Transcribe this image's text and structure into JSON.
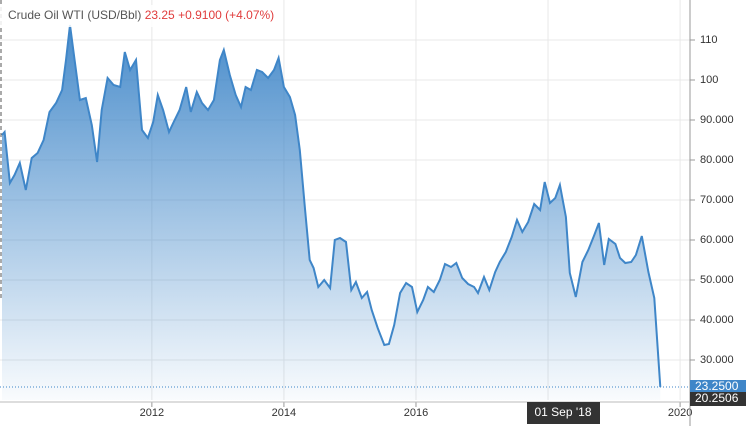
{
  "chart_data": {
    "type": "area",
    "title": "Crude Oil WTI (USD/Bbl)",
    "quote": {
      "price": "23.25",
      "change": "+0.9100",
      "change_percent": "(+4.07%)"
    },
    "color": "#3f86c8",
    "x": [
      2009.73,
      2009.77,
      2009.85,
      2009.92,
      2010.0,
      2010.09,
      2010.18,
      2010.27,
      2010.36,
      2010.45,
      2010.55,
      2010.64,
      2010.7,
      2010.76,
      2010.83,
      2010.91,
      2011.0,
      2011.09,
      2011.17,
      2011.24,
      2011.33,
      2011.42,
      2011.52,
      2011.59,
      2011.67,
      2011.76,
      2011.85,
      2011.94,
      2012.02,
      2012.09,
      2012.17,
      2012.26,
      2012.33,
      2012.42,
      2012.52,
      2012.59,
      2012.68,
      2012.76,
      2012.85,
      2012.94,
      2013.03,
      2013.09,
      2013.18,
      2013.27,
      2013.35,
      2013.42,
      2013.5,
      2013.59,
      2013.67,
      2013.76,
      2013.85,
      2013.92,
      2014.0,
      2014.09,
      2014.17,
      2014.24,
      2014.32,
      2014.39,
      2014.45,
      2014.52,
      2014.61,
      2014.7,
      2014.77,
      2014.85,
      2014.94,
      2015.02,
      2015.09,
      2015.18,
      2015.26,
      2015.33,
      2015.42,
      2015.52,
      2015.59,
      2015.67,
      2015.76,
      2015.85,
      2015.94,
      2016.02,
      2016.11,
      2016.18,
      2016.27,
      2016.36,
      2016.44,
      2016.53,
      2016.61,
      2016.7,
      2016.79,
      2016.88,
      2016.94,
      2017.03,
      2017.11,
      2017.2,
      2017.27,
      2017.36,
      2017.45,
      2017.53,
      2017.61,
      2017.7,
      2017.79,
      2017.88,
      2017.95,
      2018.03,
      2018.11,
      2018.18,
      2018.27,
      2018.33,
      2018.42,
      2018.52,
      2018.61,
      2018.7,
      2018.77,
      2018.85,
      2018.92,
      2019.02,
      2019.09,
      2019.17,
      2019.26,
      2019.33,
      2019.42,
      2019.52,
      2019.61,
      2019.7
    ],
    "values": [
      86.25,
      87,
      74.25,
      76.25,
      79.25,
      72.5,
      80.5,
      81.75,
      85,
      92,
      94.25,
      97.5,
      105,
      113.75,
      105,
      95,
      95.5,
      88.75,
      79.5,
      92.5,
      100.5,
      98.75,
      98.25,
      107,
      102.5,
      105,
      87.5,
      85.5,
      89.5,
      96.25,
      92.5,
      87,
      89.5,
      92.5,
      98.25,
      92,
      97,
      94.25,
      92.5,
      95,
      105,
      107.5,
      101.25,
      96.25,
      93.25,
      98.25,
      97.5,
      102.5,
      102,
      100.5,
      102.5,
      105.5,
      98.25,
      95.75,
      91.25,
      82.5,
      67.5,
      55,
      53,
      48.25,
      50,
      48,
      60,
      60.5,
      59.5,
      47.5,
      49.5,
      45.5,
      47,
      42.5,
      38,
      33.75,
      34,
      38.75,
      46.75,
      49.25,
      48.25,
      42,
      45,
      48.25,
      47,
      50,
      54,
      53.25,
      54.25,
      50.5,
      49,
      48.25,
      46.75,
      50.75,
      47.5,
      52,
      54.5,
      57,
      60.75,
      65,
      62,
      64.5,
      69,
      67.5,
      74.5,
      69.25,
      70.5,
      73.75,
      65.75,
      51.75,
      45.75,
      54.5,
      57.5,
      61.25,
      64.25,
      53.75,
      60.25,
      59,
      55.5,
      54.25,
      54.5,
      56.25,
      61,
      52,
      45.5,
      23.25
    ],
    "xlim": [
      2009.7,
      2020.15
    ],
    "xticks": [
      2012,
      2014,
      2016,
      2018,
      2020
    ],
    "ylim": [
      20,
      120
    ],
    "yticks": [
      {
        "value": 30,
        "label": "30.000"
      },
      {
        "value": 40,
        "label": "40.000"
      },
      {
        "value": 50,
        "label": "50.000"
      },
      {
        "value": 60,
        "label": "60.000"
      },
      {
        "value": 70,
        "label": "70.000"
      },
      {
        "value": 80,
        "label": "80.000"
      },
      {
        "value": 90,
        "label": "90.000"
      },
      100,
      110
    ],
    "grid": true,
    "last_price": {
      "value": 23.25,
      "label": "23.2500"
    },
    "crosshair": {
      "x_label": "01 Sep '18",
      "y": {
        "value": 20.2506,
        "label": "20.2506"
      }
    }
  }
}
